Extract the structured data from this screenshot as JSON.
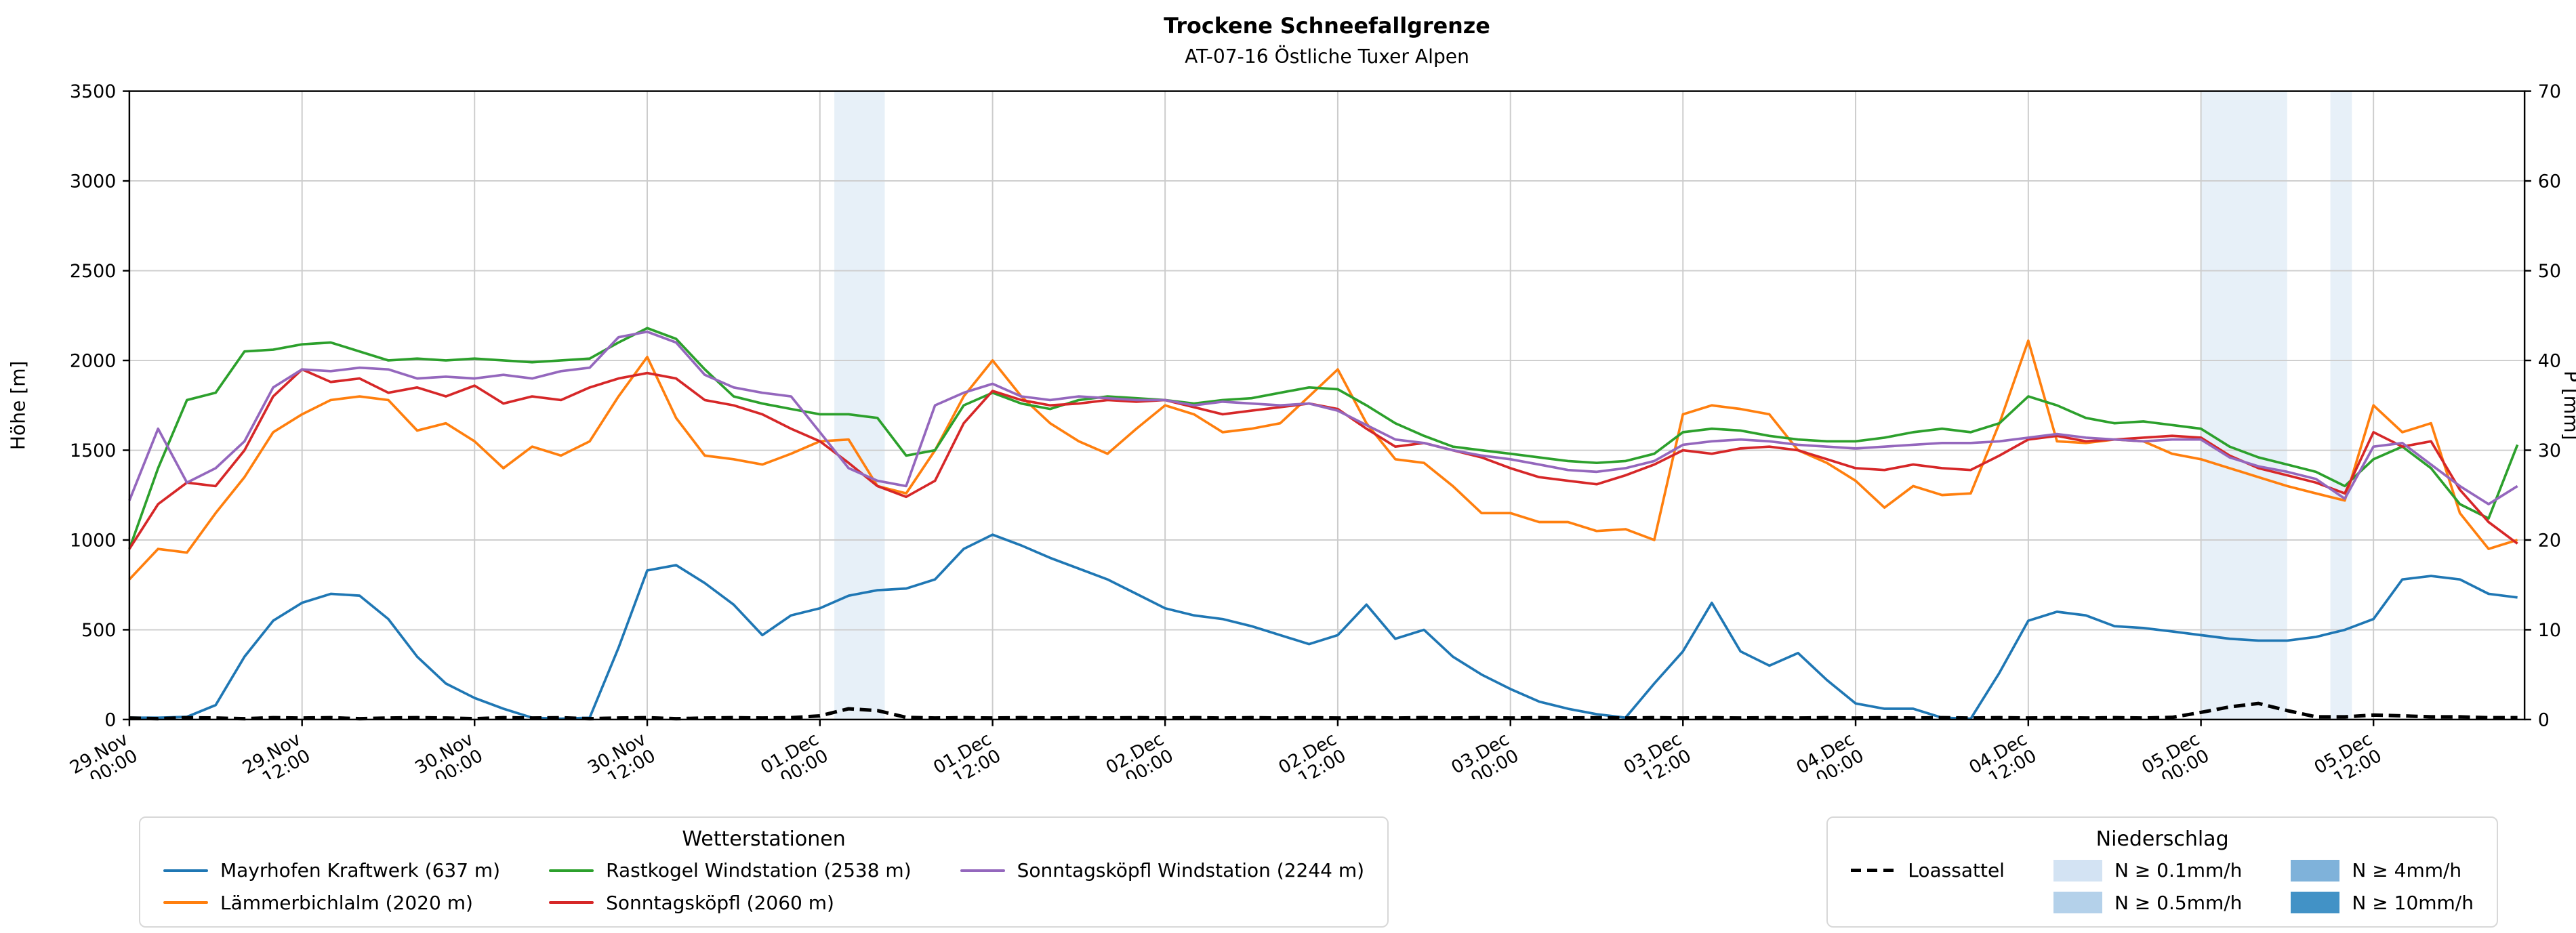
{
  "title": "Trockene Schneefallgrenze",
  "subtitle": "AT-07-16 Östliche Tuxer Alpen",
  "chart_data": {
    "type": "line",
    "title": "Trockene Schneefallgrenze",
    "subtitle": "AT-07-16 Östliche Tuxer Alpen",
    "ylabel_left": "Höhe [m]",
    "ylabel_right": "P [mm]",
    "ylim_left": [
      0,
      3500
    ],
    "ylim_right": [
      0,
      70
    ],
    "y_ticks_left": [
      0,
      500,
      1000,
      1500,
      2000,
      2500,
      3000,
      3500
    ],
    "y_ticks_right": [
      0,
      10,
      20,
      30,
      40,
      50,
      60,
      70
    ],
    "grid": true,
    "legend_position": "below",
    "x_unit": "hours since 29.Nov 00:00",
    "xlim": [
      0,
      166.5
    ],
    "x_start": 0,
    "x_step": 2,
    "x_ticks": [
      {
        "h": 0,
        "line1": "29.Nov",
        "line2": "00:00"
      },
      {
        "h": 12,
        "line1": "29.Nov",
        "line2": "12:00"
      },
      {
        "h": 24,
        "line1": "30.Nov",
        "line2": "00:00"
      },
      {
        "h": 36,
        "line1": "30.Nov",
        "line2": "12:00"
      },
      {
        "h": 48,
        "line1": "01.Dec",
        "line2": "00:00"
      },
      {
        "h": 60,
        "line1": "01.Dec",
        "line2": "12:00"
      },
      {
        "h": 72,
        "line1": "02.Dec",
        "line2": "00:00"
      },
      {
        "h": 84,
        "line1": "02.Dec",
        "line2": "12:00"
      },
      {
        "h": 96,
        "line1": "03.Dec",
        "line2": "00:00"
      },
      {
        "h": 108,
        "line1": "03.Dec",
        "line2": "12:00"
      },
      {
        "h": 120,
        "line1": "04.Dec",
        "line2": "00:00"
      },
      {
        "h": 132,
        "line1": "04.Dec",
        "line2": "12:00"
      },
      {
        "h": 144,
        "line1": "05.Dec",
        "line2": "00:00"
      },
      {
        "h": 156,
        "line1": "05.Dec",
        "line2": "12:00"
      }
    ],
    "series": [
      {
        "id": "mayrhofen-kraftwerk",
        "name": "Mayrhofen Kraftwerk (637 m)",
        "color": "#1f77b4",
        "style": "solid",
        "y": [
          10,
          10,
          15,
          80,
          350,
          550,
          650,
          700,
          690,
          560,
          350,
          200,
          120,
          60,
          10,
          5,
          10,
          400,
          830,
          860,
          760,
          640,
          470,
          580,
          620,
          690,
          720,
          730,
          780,
          950,
          1030,
          970,
          900,
          840,
          780,
          700,
          620,
          580,
          560,
          520,
          470,
          420,
          470,
          640,
          450,
          500,
          350,
          250,
          170,
          100,
          60,
          30,
          10,
          200,
          380,
          650,
          380,
          300,
          370,
          220,
          90,
          60,
          60,
          10,
          5,
          260,
          550,
          600,
          580,
          520,
          510,
          490,
          470,
          450,
          440,
          440,
          460,
          500,
          560,
          780,
          800,
          780,
          700,
          680
        ]
      },
      {
        "id": "laemmerbichlalm",
        "name": "Lämmerbichlalm (2020 m)",
        "color": "#ff7f0e",
        "style": "solid",
        "y": [
          780,
          950,
          930,
          1150,
          1350,
          1600,
          1700,
          1780,
          1800,
          1780,
          1610,
          1650,
          1550,
          1400,
          1520,
          1470,
          1550,
          1800,
          2020,
          1680,
          1470,
          1450,
          1420,
          1480,
          1550,
          1560,
          1300,
          1260,
          1500,
          1800,
          2000,
          1800,
          1650,
          1550,
          1480,
          1620,
          1750,
          1700,
          1600,
          1620,
          1650,
          1800,
          1950,
          1650,
          1450,
          1430,
          1300,
          1150,
          1150,
          1100,
          1100,
          1050,
          1060,
          1000,
          1700,
          1750,
          1730,
          1700,
          1500,
          1430,
          1330,
          1180,
          1300,
          1250,
          1260,
          1650,
          2110,
          1550,
          1540,
          1560,
          1550,
          1480,
          1450,
          1400,
          1350,
          1300,
          1260,
          1220,
          1750,
          1600,
          1650,
          1150,
          950,
          1000
        ]
      },
      {
        "id": "rastkogel-windstation",
        "name": "Rastkogel Windstation (2538 m)",
        "color": "#2ca02c",
        "style": "solid",
        "y": [
          950,
          1400,
          1780,
          1820,
          2050,
          2060,
          2090,
          2100,
          2050,
          2000,
          2010,
          2000,
          2010,
          2000,
          1990,
          2000,
          2010,
          2100,
          2180,
          2120,
          1950,
          1800,
          1760,
          1730,
          1700,
          1700,
          1680,
          1470,
          1500,
          1750,
          1820,
          1760,
          1730,
          1780,
          1800,
          1790,
          1780,
          1760,
          1780,
          1790,
          1820,
          1850,
          1840,
          1750,
          1650,
          1580,
          1520,
          1500,
          1480,
          1460,
          1440,
          1430,
          1440,
          1480,
          1600,
          1620,
          1610,
          1580,
          1560,
          1550,
          1550,
          1570,
          1600,
          1620,
          1600,
          1650,
          1800,
          1750,
          1680,
          1650,
          1660,
          1640,
          1620,
          1520,
          1460,
          1420,
          1380,
          1300,
          1450,
          1520,
          1400,
          1200,
          1120,
          1530
        ]
      },
      {
        "id": "sonntagskoepfl",
        "name": "Sonntagsköpfl (2060 m)",
        "color": "#d62728",
        "style": "solid",
        "y": [
          950,
          1200,
          1320,
          1300,
          1500,
          1800,
          1950,
          1880,
          1900,
          1820,
          1850,
          1800,
          1860,
          1760,
          1800,
          1780,
          1850,
          1900,
          1930,
          1900,
          1780,
          1750,
          1700,
          1620,
          1550,
          1430,
          1300,
          1240,
          1330,
          1650,
          1830,
          1780,
          1750,
          1760,
          1780,
          1770,
          1780,
          1740,
          1700,
          1720,
          1740,
          1760,
          1730,
          1620,
          1520,
          1540,
          1500,
          1460,
          1400,
          1350,
          1330,
          1310,
          1360,
          1420,
          1500,
          1480,
          1510,
          1520,
          1500,
          1450,
          1400,
          1390,
          1420,
          1400,
          1390,
          1470,
          1560,
          1580,
          1550,
          1560,
          1570,
          1580,
          1570,
          1470,
          1400,
          1360,
          1320,
          1260,
          1600,
          1520,
          1550,
          1280,
          1100,
          980
        ]
      },
      {
        "id": "sonntagskoepfl-windstation",
        "name": "Sonntagsköpfl Windstation (2244 m)",
        "color": "#9467bd",
        "style": "solid",
        "y": [
          1220,
          1620,
          1320,
          1400,
          1550,
          1850,
          1950,
          1940,
          1960,
          1950,
          1900,
          1910,
          1900,
          1920,
          1900,
          1940,
          1960,
          2130,
          2160,
          2100,
          1920,
          1850,
          1820,
          1800,
          1600,
          1400,
          1330,
          1300,
          1750,
          1820,
          1870,
          1800,
          1780,
          1800,
          1790,
          1780,
          1780,
          1750,
          1770,
          1760,
          1750,
          1760,
          1720,
          1640,
          1560,
          1540,
          1500,
          1470,
          1450,
          1420,
          1390,
          1380,
          1400,
          1440,
          1530,
          1550,
          1560,
          1550,
          1530,
          1520,
          1510,
          1520,
          1530,
          1540,
          1540,
          1550,
          1570,
          1590,
          1570,
          1560,
          1550,
          1560,
          1560,
          1460,
          1410,
          1380,
          1340,
          1230,
          1520,
          1540,
          1420,
          1300,
          1200,
          1300
        ]
      },
      {
        "id": "loassattel",
        "name": "Loassattel",
        "color": "#000000",
        "style": "dashed",
        "y": [
          8,
          5,
          10,
          8,
          5,
          10,
          8,
          10,
          5,
          8,
          10,
          8,
          5,
          10,
          8,
          10,
          5,
          8,
          10,
          5,
          8,
          10,
          8,
          10,
          20,
          60,
          50,
          12,
          8,
          10,
          8,
          10,
          8,
          10,
          8,
          10,
          8,
          10,
          8,
          10,
          8,
          10,
          8,
          10,
          8,
          10,
          8,
          10,
          8,
          10,
          8,
          10,
          8,
          10,
          8,
          10,
          8,
          10,
          8,
          10,
          8,
          10,
          8,
          10,
          8,
          10,
          8,
          10,
          8,
          10,
          8,
          12,
          40,
          70,
          90,
          50,
          15,
          15,
          25,
          20,
          15,
          15,
          10,
          10
        ]
      }
    ],
    "precip_bands": [
      {
        "start_h": 49.0,
        "end_h": 52.5,
        "level": "N ≥ 0.1mm/h",
        "color": "#d3e3f3"
      },
      {
        "start_h": 144.0,
        "end_h": 150.0,
        "level": "N ≥ 0.1mm/h",
        "color": "#d3e3f3"
      },
      {
        "start_h": 153.0,
        "end_h": 154.5,
        "level": "N ≥ 0.1mm/h",
        "color": "#d3e3f3"
      }
    ]
  },
  "legend_stations": {
    "title": "Wetterstationen",
    "items": [
      {
        "label": "Mayrhofen Kraftwerk (637 m)",
        "color": "#1f77b4"
      },
      {
        "label": "Lämmerbichlalm (2020 m)",
        "color": "#ff7f0e"
      },
      {
        "label": "Rastkogel Windstation (2538 m)",
        "color": "#2ca02c"
      },
      {
        "label": "Sonntagsköpfl (2060 m)",
        "color": "#d62728"
      },
      {
        "label": "Sonntagsköpfl Windstation (2244 m)",
        "color": "#9467bd"
      }
    ]
  },
  "legend_precip": {
    "title": "Niederschlag",
    "items": [
      {
        "label": "Loassattel",
        "color": "#000000",
        "type": "dashed-line"
      },
      {
        "label": "N ≥ 0.1mm/h",
        "color": "#d3e3f3",
        "type": "patch"
      },
      {
        "label": "N ≥ 0.5mm/h",
        "color": "#b4d1ea",
        "type": "patch"
      },
      {
        "label": "N ≥ 4mm/h",
        "color": "#7fb2da",
        "type": "patch"
      },
      {
        "label": "N ≥ 10mm/h",
        "color": "#4292c6",
        "type": "patch"
      }
    ]
  }
}
